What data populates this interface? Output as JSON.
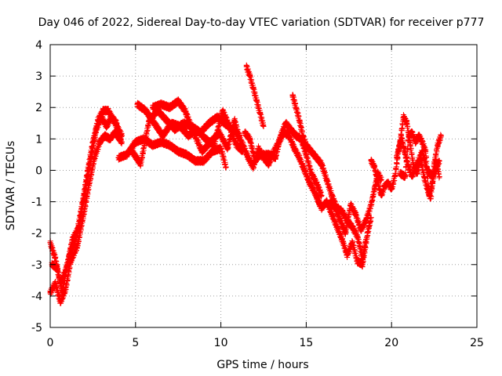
{
  "chart_data": {
    "type": "scatter",
    "title": "Day 046 of 2022, Sidereal Day-to-day VTEC variation (SDTVAR) for receiver p777",
    "xlabel": "GPS time / hours",
    "ylabel": "SDTVAR / TECUs",
    "xlim": [
      0,
      25
    ],
    "ylim": [
      -5,
      4
    ],
    "xticks": [
      0,
      5,
      10,
      15,
      20,
      25
    ],
    "yticks": [
      -5,
      -4,
      -3,
      -2,
      -1,
      0,
      1,
      2,
      3,
      4
    ],
    "grid": true,
    "marker": "+",
    "series": [
      {
        "name": "SDTVAR",
        "color": "#ff0000",
        "tracks": [
          [
            [
              0.0,
              -2.3
            ],
            [
              0.3,
              -2.8
            ],
            [
              0.6,
              -3.6
            ],
            [
              0.9,
              -3.2
            ],
            [
              1.2,
              -2.6
            ],
            [
              1.5,
              -2.2
            ],
            [
              1.9,
              -1.0
            ],
            [
              2.2,
              0.0
            ],
            [
              2.5,
              0.9
            ],
            [
              2.8,
              1.6
            ],
            [
              3.1,
              1.9
            ],
            [
              3.4,
              1.9
            ],
            [
              3.7,
              1.6
            ],
            [
              4.0,
              1.3
            ],
            [
              4.2,
              1.1
            ]
          ],
          [
            [
              0.0,
              -3.9
            ],
            [
              0.3,
              -3.6
            ],
            [
              0.6,
              -4.2
            ],
            [
              0.9,
              -3.8
            ],
            [
              1.2,
              -2.9
            ],
            [
              1.6,
              -2.4
            ],
            [
              2.0,
              -1.3
            ],
            [
              2.3,
              -0.4
            ],
            [
              2.6,
              0.4
            ],
            [
              2.9,
              0.9
            ],
            [
              3.2,
              1.1
            ],
            [
              3.5,
              1.0
            ],
            [
              3.8,
              1.2
            ],
            [
              4.2,
              0.9
            ]
          ],
          [
            [
              0.1,
              -3.0
            ],
            [
              0.4,
              -3.1
            ],
            [
              0.7,
              -3.9
            ],
            [
              1.0,
              -3.0
            ],
            [
              1.3,
              -2.2
            ],
            [
              1.7,
              -1.8
            ],
            [
              2.1,
              -0.5
            ],
            [
              2.4,
              0.4
            ],
            [
              2.7,
              1.3
            ],
            [
              3.0,
              1.7
            ],
            [
              3.3,
              1.4
            ],
            [
              3.6,
              1.7
            ],
            [
              3.9,
              1.5
            ]
          ],
          [
            [
              4.0,
              0.4
            ],
            [
              4.5,
              0.5
            ],
            [
              5.0,
              0.9
            ],
            [
              5.5,
              1.0
            ],
            [
              6.0,
              0.8
            ],
            [
              6.5,
              0.9
            ],
            [
              7.0,
              0.8
            ],
            [
              7.5,
              0.6
            ],
            [
              8.0,
              0.5
            ],
            [
              8.5,
              0.3
            ],
            [
              9.0,
              0.3
            ],
            [
              9.5,
              0.6
            ],
            [
              10.0,
              0.7
            ],
            [
              10.3,
              0.1
            ]
          ],
          [
            [
              4.8,
              0.6
            ],
            [
              5.3,
              0.2
            ],
            [
              5.8,
              1.6
            ],
            [
              6.3,
              1.9
            ],
            [
              6.8,
              1.6
            ],
            [
              7.3,
              1.3
            ],
            [
              7.8,
              1.5
            ],
            [
              8.3,
              1.4
            ],
            [
              8.8,
              1.2
            ],
            [
              9.3,
              1.5
            ],
            [
              9.8,
              1.7
            ],
            [
              10.2,
              1.5
            ],
            [
              10.7,
              1.3
            ],
            [
              11.1,
              1.1
            ]
          ],
          [
            [
              5.1,
              2.1
            ],
            [
              5.6,
              1.9
            ],
            [
              6.1,
              1.5
            ],
            [
              6.6,
              1.1
            ],
            [
              7.1,
              1.5
            ],
            [
              7.6,
              1.4
            ],
            [
              8.1,
              1.1
            ],
            [
              8.6,
              1.3
            ],
            [
              9.1,
              1.0
            ],
            [
              9.6,
              0.8
            ],
            [
              10.1,
              1.9
            ],
            [
              10.5,
              1.4
            ],
            [
              10.9,
              0.8
            ],
            [
              11.3,
              0.6
            ]
          ],
          [
            [
              6.0,
              2.0
            ],
            [
              6.5,
              2.1
            ],
            [
              7.0,
              2.0
            ],
            [
              7.5,
              2.2
            ],
            [
              7.9,
              1.9
            ],
            [
              8.4,
              1.2
            ],
            [
              8.9,
              0.6
            ],
            [
              9.4,
              0.9
            ],
            [
              9.9,
              1.2
            ],
            [
              10.4,
              0.7
            ],
            [
              10.8,
              1.6
            ],
            [
              11.0,
              1.2
            ]
          ],
          [
            [
              11.5,
              3.3
            ],
            [
              11.7,
              3.0
            ],
            [
              11.9,
              2.6
            ],
            [
              12.1,
              2.2
            ],
            [
              12.3,
              1.8
            ],
            [
              12.5,
              1.4
            ]
          ],
          [
            [
              11.0,
              1.1
            ],
            [
              11.3,
              0.8
            ],
            [
              11.6,
              0.4
            ],
            [
              11.9,
              0.1
            ],
            [
              12.2,
              0.7
            ],
            [
              12.5,
              0.4
            ],
            [
              12.8,
              0.2
            ],
            [
              13.1,
              0.6
            ],
            [
              13.4,
              0.9
            ],
            [
              13.7,
              1.2
            ],
            [
              14.0,
              1.1
            ],
            [
              14.3,
              0.7
            ],
            [
              14.6,
              0.4
            ],
            [
              14.9,
              0.0
            ],
            [
              15.2,
              -0.4
            ],
            [
              15.5,
              -0.7
            ],
            [
              15.8,
              -1.1
            ]
          ],
          [
            [
              11.4,
              1.2
            ],
            [
              11.7,
              1.0
            ],
            [
              12.0,
              0.3
            ],
            [
              12.3,
              0.5
            ],
            [
              12.6,
              0.5
            ],
            [
              12.9,
              0.5
            ],
            [
              13.2,
              0.4
            ],
            [
              13.5,
              1.1
            ],
            [
              13.8,
              1.5
            ],
            [
              14.1,
              1.3
            ],
            [
              14.4,
              1.1
            ],
            [
              14.7,
              1.0
            ],
            [
              15.0,
              0.5
            ],
            [
              15.3,
              -0.1
            ],
            [
              15.6,
              -0.4
            ],
            [
              15.9,
              -0.8
            ]
          ],
          [
            [
              14.2,
              2.4
            ],
            [
              14.4,
              2.0
            ],
            [
              14.6,
              1.6
            ],
            [
              14.8,
              1.1
            ],
            [
              15.0,
              0.8
            ],
            [
              15.3,
              0.6
            ],
            [
              15.6,
              0.4
            ],
            [
              15.9,
              0.2
            ],
            [
              16.2,
              -0.3
            ],
            [
              16.5,
              -0.8
            ],
            [
              16.8,
              -1.2
            ],
            [
              17.1,
              -1.3
            ],
            [
              17.4,
              -1.6
            ],
            [
              17.7,
              -1.8
            ],
            [
              18.0,
              -2.1
            ],
            [
              18.3,
              -2.8
            ],
            [
              18.5,
              -2.2
            ]
          ],
          [
            [
              15.6,
              -0.8
            ],
            [
              15.9,
              -1.2
            ],
            [
              16.2,
              -1.0
            ],
            [
              16.5,
              -1.4
            ],
            [
              16.8,
              -1.8
            ],
            [
              17.1,
              -2.2
            ],
            [
              17.4,
              -2.7
            ],
            [
              17.7,
              -2.3
            ],
            [
              18.0,
              -2.9
            ],
            [
              18.3,
              -3.0
            ],
            [
              18.6,
              -2.0
            ],
            [
              18.8,
              -1.5
            ]
          ],
          [
            [
              16.4,
              -1.0
            ],
            [
              16.7,
              -1.2
            ],
            [
              17.0,
              -1.6
            ],
            [
              17.3,
              -2.0
            ],
            [
              17.6,
              -1.1
            ],
            [
              17.9,
              -1.4
            ],
            [
              18.2,
              -1.9
            ],
            [
              18.5,
              -1.6
            ],
            [
              18.8,
              -1.1
            ],
            [
              19.0,
              -0.6
            ],
            [
              19.2,
              -0.1
            ],
            [
              19.4,
              -0.3
            ]
          ],
          [
            [
              18.8,
              0.3
            ],
            [
              19.0,
              0.1
            ],
            [
              19.2,
              -0.4
            ],
            [
              19.4,
              -0.8
            ],
            [
              19.6,
              -0.5
            ],
            [
              19.8,
              -0.4
            ],
            [
              20.0,
              -0.6
            ],
            [
              20.2,
              -0.2
            ],
            [
              20.4,
              0.6
            ],
            [
              20.6,
              1.0
            ],
            [
              20.8,
              0.5
            ],
            [
              21.0,
              0.1
            ],
            [
              21.2,
              -0.2
            ],
            [
              21.5,
              0.2
            ],
            [
              21.8,
              0.6
            ],
            [
              22.1,
              0.0
            ],
            [
              22.4,
              -0.2
            ],
            [
              22.8,
              0.3
            ]
          ],
          [
            [
              20.3,
              0.4
            ],
            [
              20.5,
              0.9
            ],
            [
              20.7,
              1.7
            ],
            [
              20.9,
              1.5
            ],
            [
              21.1,
              0.8
            ],
            [
              21.3,
              0.1
            ],
            [
              21.5,
              -0.1
            ],
            [
              21.7,
              0.4
            ],
            [
              21.9,
              -0.2
            ],
            [
              22.1,
              -0.6
            ],
            [
              22.3,
              -0.9
            ],
            [
              22.5,
              0.2
            ],
            [
              22.7,
              0.8
            ],
            [
              22.9,
              1.1
            ]
          ],
          [
            [
              20.5,
              -0.1
            ],
            [
              20.8,
              -0.2
            ],
            [
              21.0,
              1.1
            ],
            [
              21.2,
              1.2
            ],
            [
              21.4,
              0.9
            ],
            [
              21.6,
              1.1
            ],
            [
              21.8,
              0.9
            ],
            [
              22.0,
              0.6
            ],
            [
              22.2,
              -0.8
            ],
            [
              22.4,
              -0.4
            ],
            [
              22.6,
              0.3
            ],
            [
              22.8,
              -0.2
            ]
          ]
        ]
      }
    ]
  }
}
